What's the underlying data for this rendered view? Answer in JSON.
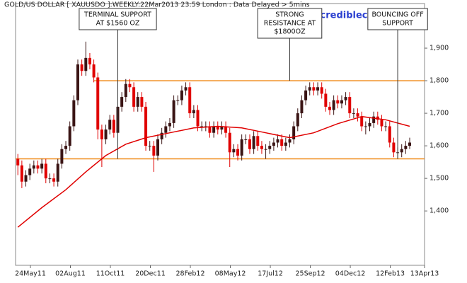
{
  "chart_data": {
    "type": "candlestick",
    "title": "GOLD/US DOLLAR [ XAUUSDO ]:WEEKLY:22Mar2013 23:59 London : Data Delayed > 5mins",
    "watermark": "www.incrediblecharts.com",
    "up_color": "#3a1414",
    "down_color": "#e00000",
    "x": [
      "2011-05-02",
      "2011-05-09",
      "2011-05-16",
      "2011-05-23",
      "2011-05-30",
      "2011-06-06",
      "2011-06-13",
      "2011-06-20",
      "2011-06-27",
      "2011-07-04",
      "2011-07-11",
      "2011-07-18",
      "2011-07-25",
      "2011-08-01",
      "2011-08-08",
      "2011-08-15",
      "2011-08-22",
      "2011-08-29",
      "2011-09-05",
      "2011-09-12",
      "2011-09-19",
      "2011-09-26",
      "2011-10-03",
      "2011-10-10",
      "2011-10-17",
      "2011-10-24",
      "2011-10-31",
      "2011-11-07",
      "2011-11-14",
      "2011-11-21",
      "2011-11-28",
      "2011-12-05",
      "2011-12-12",
      "2011-12-19",
      "2011-12-26",
      "2012-01-02",
      "2012-01-09",
      "2012-01-16",
      "2012-01-23",
      "2012-01-30",
      "2012-02-06",
      "2012-02-13",
      "2012-02-20",
      "2012-02-27",
      "2012-03-05",
      "2012-03-12",
      "2012-03-19",
      "2012-03-26",
      "2012-04-02",
      "2012-04-09",
      "2012-04-16",
      "2012-04-23",
      "2012-04-30",
      "2012-05-07",
      "2012-05-14",
      "2012-05-21",
      "2012-05-28",
      "2012-06-04",
      "2012-06-11",
      "2012-06-18",
      "2012-06-25",
      "2012-07-02",
      "2012-07-09",
      "2012-07-16",
      "2012-07-23",
      "2012-07-30",
      "2012-08-06",
      "2012-08-13",
      "2012-08-20",
      "2012-08-27",
      "2012-09-03",
      "2012-09-10",
      "2012-09-17",
      "2012-09-24",
      "2012-10-01",
      "2012-10-08",
      "2012-10-15",
      "2012-10-22",
      "2012-10-29",
      "2012-11-05",
      "2012-11-12",
      "2012-11-19",
      "2012-11-26",
      "2012-12-03",
      "2012-12-10",
      "2012-12-17",
      "2012-12-24",
      "2012-12-31",
      "2013-01-07",
      "2013-01-14",
      "2013-01-21",
      "2013-01-28",
      "2013-02-04",
      "2013-02-11",
      "2013-02-18",
      "2013-02-25",
      "2013-03-04",
      "2013-03-11",
      "2013-03-18"
    ],
    "open": [
      1560,
      1540,
      1490,
      1510,
      1530,
      1540,
      1530,
      1545,
      1500,
      1500,
      1490,
      1545,
      1590,
      1600,
      1660,
      1740,
      1850,
      1830,
      1870,
      1850,
      1810,
      1650,
      1620,
      1650,
      1680,
      1640,
      1720,
      1750,
      1790,
      1780,
      1720,
      1750,
      1720,
      1600,
      1600,
      1570,
      1620,
      1640,
      1660,
      1670,
      1740,
      1740,
      1770,
      1780,
      1700,
      1710,
      1660,
      1660,
      1660,
      1640,
      1660,
      1650,
      1660,
      1640,
      1580,
      1590,
      1570,
      1620,
      1620,
      1590,
      1630,
      1600,
      1590,
      1590,
      1600,
      1610,
      1620,
      1600,
      1610,
      1620,
      1660,
      1700,
      1740,
      1770,
      1780,
      1770,
      1780,
      1760,
      1720,
      1710,
      1740,
      1730,
      1740,
      1750,
      1700,
      1700,
      1690,
      1660,
      1660,
      1670,
      1690,
      1680,
      1660,
      1660,
      1610,
      1580,
      1580,
      1590,
      1600
    ],
    "high": [
      1575,
      1555,
      1525,
      1545,
      1555,
      1555,
      1560,
      1560,
      1515,
      1515,
      1560,
      1605,
      1615,
      1675,
      1755,
      1865,
      1865,
      1920,
      1885,
      1865,
      1825,
      1665,
      1665,
      1695,
      1695,
      1735,
      1765,
      1805,
      1805,
      1795,
      1765,
      1765,
      1735,
      1615,
      1615,
      1635,
      1655,
      1675,
      1685,
      1755,
      1755,
      1785,
      1795,
      1795,
      1725,
      1725,
      1675,
      1675,
      1675,
      1675,
      1675,
      1675,
      1675,
      1655,
      1605,
      1605,
      1635,
      1635,
      1635,
      1645,
      1645,
      1615,
      1605,
      1615,
      1625,
      1635,
      1635,
      1625,
      1635,
      1675,
      1715,
      1755,
      1785,
      1795,
      1795,
      1795,
      1795,
      1775,
      1735,
      1755,
      1755,
      1755,
      1765,
      1765,
      1715,
      1715,
      1705,
      1675,
      1685,
      1705,
      1705,
      1695,
      1675,
      1675,
      1625,
      1595,
      1605,
      1615,
      1625
    ],
    "low": [
      1510,
      1470,
      1475,
      1495,
      1515,
      1515,
      1515,
      1485,
      1485,
      1475,
      1475,
      1530,
      1575,
      1585,
      1645,
      1725,
      1815,
      1815,
      1835,
      1795,
      1620,
      1535,
      1605,
      1635,
      1625,
      1625,
      1705,
      1735,
      1765,
      1705,
      1705,
      1705,
      1585,
      1585,
      1520,
      1555,
      1605,
      1625,
      1645,
      1655,
      1725,
      1725,
      1755,
      1685,
      1685,
      1645,
      1645,
      1645,
      1625,
      1625,
      1635,
      1635,
      1625,
      1535,
      1565,
      1555,
      1555,
      1605,
      1575,
      1575,
      1585,
      1575,
      1560,
      1575,
      1585,
      1595,
      1585,
      1585,
      1595,
      1605,
      1645,
      1685,
      1725,
      1755,
      1755,
      1755,
      1745,
      1705,
      1695,
      1695,
      1715,
      1715,
      1725,
      1685,
      1685,
      1675,
      1645,
      1635,
      1645,
      1655,
      1665,
      1645,
      1645,
      1595,
      1565,
      1560,
      1565,
      1575,
      1590
    ],
    "close": [
      1540,
      1490,
      1510,
      1530,
      1540,
      1530,
      1545,
      1500,
      1500,
      1490,
      1545,
      1590,
      1600,
      1660,
      1740,
      1850,
      1830,
      1870,
      1850,
      1810,
      1650,
      1620,
      1650,
      1680,
      1640,
      1720,
      1750,
      1790,
      1780,
      1720,
      1750,
      1720,
      1600,
      1600,
      1570,
      1620,
      1640,
      1660,
      1670,
      1740,
      1740,
      1770,
      1780,
      1700,
      1710,
      1660,
      1660,
      1660,
      1640,
      1660,
      1650,
      1660,
      1640,
      1580,
      1590,
      1570,
      1620,
      1620,
      1590,
      1630,
      1600,
      1590,
      1590,
      1600,
      1610,
      1620,
      1600,
      1610,
      1620,
      1660,
      1700,
      1740,
      1770,
      1780,
      1770,
      1780,
      1760,
      1720,
      1710,
      1740,
      1730,
      1740,
      1750,
      1700,
      1700,
      1690,
      1660,
      1660,
      1670,
      1690,
      1680,
      1660,
      1660,
      1610,
      1580,
      1580,
      1590,
      1600,
      1610
    ],
    "moving_average": {
      "color": "#e00000",
      "x": [
        "2011-05-02",
        "2011-06-13",
        "2011-07-25",
        "2011-08-29",
        "2011-10-03",
        "2011-11-07",
        "2011-12-12",
        "2012-01-23",
        "2012-03-05",
        "2012-04-16",
        "2012-05-28",
        "2012-07-09",
        "2012-08-20",
        "2012-10-01",
        "2012-11-12",
        "2012-12-24",
        "2013-02-04",
        "2013-03-18"
      ],
      "values": [
        1350,
        1410,
        1465,
        1520,
        1570,
        1605,
        1625,
        1640,
        1655,
        1660,
        1655,
        1640,
        1625,
        1640,
        1668,
        1690,
        1680,
        1660
      ]
    },
    "levels": [
      {
        "value": 1800,
        "from": "2011-09-12",
        "color": "#f08c1c"
      },
      {
        "value": 1560,
        "from": "2011-04-28",
        "color": "#f08c1c"
      }
    ],
    "annotations": [
      {
        "lines": [
          "TERMINAL SUPPORT",
          "AT $1560 OZ"
        ],
        "x": "2011-10-24",
        "y": 1560
      },
      {
        "lines": [
          "STRONG",
          "RESISTANCE AT",
          "$1800OZ"
        ],
        "x": "2012-08-20",
        "y": 1800
      },
      {
        "lines": [
          "BOUNCING OFF",
          "SUPPORT"
        ],
        "x": "2013-02-25",
        "y": 1560
      }
    ],
    "xlim": [
      "2011-04-28",
      "2013-04-13"
    ],
    "xticks": [
      {
        "value": "2011-05-24",
        "label": "24May11"
      },
      {
        "value": "2011-08-02",
        "label": "02Aug11"
      },
      {
        "value": "2011-10-11",
        "label": "11Oct11"
      },
      {
        "value": "2011-12-20",
        "label": "20Dec11"
      },
      {
        "value": "2012-02-28",
        "label": "28Feb12"
      },
      {
        "value": "2012-05-08",
        "label": "08May12"
      },
      {
        "value": "2012-07-17",
        "label": "17Jul12"
      },
      {
        "value": "2012-09-25",
        "label": "25Sep12"
      },
      {
        "value": "2012-12-04",
        "label": "04Dec12"
      },
      {
        "value": "2013-02-12",
        "label": "12Feb13"
      },
      {
        "value": "2013-04-13",
        "label": "13Apr13"
      }
    ],
    "ylim": [
      1233,
      2037
    ],
    "yticks": [
      {
        "value": 1400,
        "label": "1,400"
      },
      {
        "value": 1500,
        "label": "1,500"
      },
      {
        "value": 1600,
        "label": "1,600"
      },
      {
        "value": 1700,
        "label": "1,700"
      },
      {
        "value": 1800,
        "label": "1,800"
      },
      {
        "value": 1900,
        "label": "1,900"
      }
    ]
  }
}
